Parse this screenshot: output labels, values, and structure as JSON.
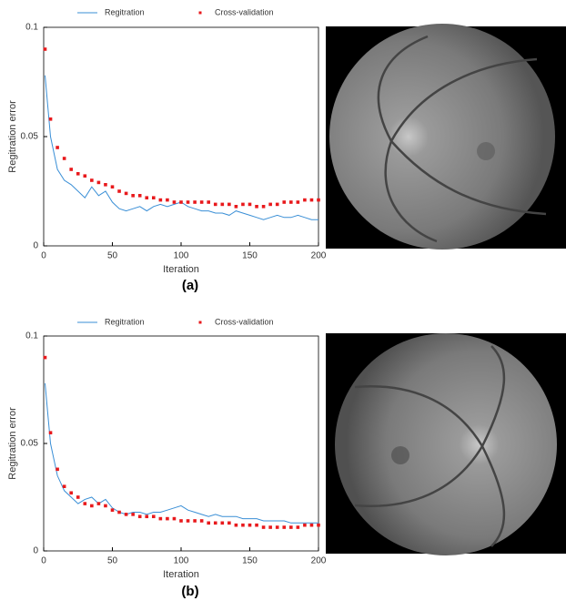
{
  "chart_data": [
    {
      "type": "line",
      "panel_label": "(a)",
      "xlabel": "Iteration",
      "ylabel": "Regitration error",
      "x": [
        1,
        5,
        10,
        15,
        20,
        25,
        30,
        35,
        40,
        45,
        50,
        55,
        60,
        65,
        70,
        75,
        80,
        85,
        90,
        95,
        100,
        105,
        110,
        115,
        120,
        125,
        130,
        135,
        140,
        145,
        150,
        155,
        160,
        165,
        170,
        175,
        180,
        185,
        190,
        195,
        200
      ],
      "series": [
        {
          "name": "Regitration",
          "kind": "line",
          "color": "#3a8fd6",
          "values": [
            0.078,
            0.05,
            0.035,
            0.03,
            0.028,
            0.025,
            0.022,
            0.027,
            0.023,
            0.025,
            0.02,
            0.017,
            0.016,
            0.017,
            0.018,
            0.016,
            0.018,
            0.019,
            0.018,
            0.019,
            0.02,
            0.018,
            0.017,
            0.016,
            0.016,
            0.015,
            0.015,
            0.014,
            0.016,
            0.015,
            0.014,
            0.013,
            0.012,
            0.013,
            0.014,
            0.013,
            0.013,
            0.014,
            0.013,
            0.012,
            0.012
          ]
        },
        {
          "name": "Cross-validation",
          "kind": "scatter",
          "color": "#e8191c",
          "values": [
            0.09,
            0.058,
            0.045,
            0.04,
            0.035,
            0.033,
            0.032,
            0.03,
            0.029,
            0.028,
            0.027,
            0.025,
            0.024,
            0.023,
            0.023,
            0.022,
            0.022,
            0.021,
            0.021,
            0.02,
            0.02,
            0.02,
            0.02,
            0.02,
            0.02,
            0.019,
            0.019,
            0.019,
            0.018,
            0.019,
            0.019,
            0.018,
            0.018,
            0.019,
            0.019,
            0.02,
            0.02,
            0.02,
            0.021,
            0.021,
            0.021
          ]
        }
      ],
      "xlim": [
        0,
        200
      ],
      "xticks": [
        0,
        50,
        100,
        150,
        200
      ],
      "ylim": [
        0,
        0.1
      ],
      "yticks": [
        0,
        0.05,
        0.1
      ],
      "grid": false,
      "legend": "top"
    },
    {
      "type": "line",
      "panel_label": "(b)",
      "xlabel": "Iteration",
      "ylabel": "Regitration error",
      "x": [
        1,
        5,
        10,
        15,
        20,
        25,
        30,
        35,
        40,
        45,
        50,
        55,
        60,
        65,
        70,
        75,
        80,
        85,
        90,
        95,
        100,
        105,
        110,
        115,
        120,
        125,
        130,
        135,
        140,
        145,
        150,
        155,
        160,
        165,
        170,
        175,
        180,
        185,
        190,
        195,
        200
      ],
      "series": [
        {
          "name": "Regitration",
          "kind": "line",
          "color": "#3a8fd6",
          "values": [
            0.078,
            0.05,
            0.035,
            0.028,
            0.025,
            0.022,
            0.024,
            0.025,
            0.022,
            0.024,
            0.02,
            0.018,
            0.017,
            0.018,
            0.018,
            0.017,
            0.018,
            0.018,
            0.019,
            0.02,
            0.021,
            0.019,
            0.018,
            0.017,
            0.016,
            0.017,
            0.016,
            0.016,
            0.016,
            0.015,
            0.015,
            0.015,
            0.014,
            0.014,
            0.014,
            0.014,
            0.013,
            0.013,
            0.013,
            0.013,
            0.013
          ]
        },
        {
          "name": "Cross-validation",
          "kind": "scatter",
          "color": "#e8191c",
          "values": [
            0.09,
            0.055,
            0.038,
            0.03,
            0.027,
            0.025,
            0.022,
            0.021,
            0.022,
            0.021,
            0.019,
            0.018,
            0.017,
            0.017,
            0.016,
            0.016,
            0.016,
            0.015,
            0.015,
            0.015,
            0.014,
            0.014,
            0.014,
            0.014,
            0.013,
            0.013,
            0.013,
            0.013,
            0.012,
            0.012,
            0.012,
            0.012,
            0.011,
            0.011,
            0.011,
            0.011,
            0.011,
            0.011,
            0.012,
            0.012,
            0.012
          ]
        }
      ],
      "xlim": [
        0,
        200
      ],
      "xticks": [
        0,
        50,
        100,
        150,
        200
      ],
      "ylim": [
        0,
        0.1
      ],
      "yticks": [
        0,
        0.05,
        0.1
      ],
      "grid": false,
      "legend": "top"
    }
  ]
}
